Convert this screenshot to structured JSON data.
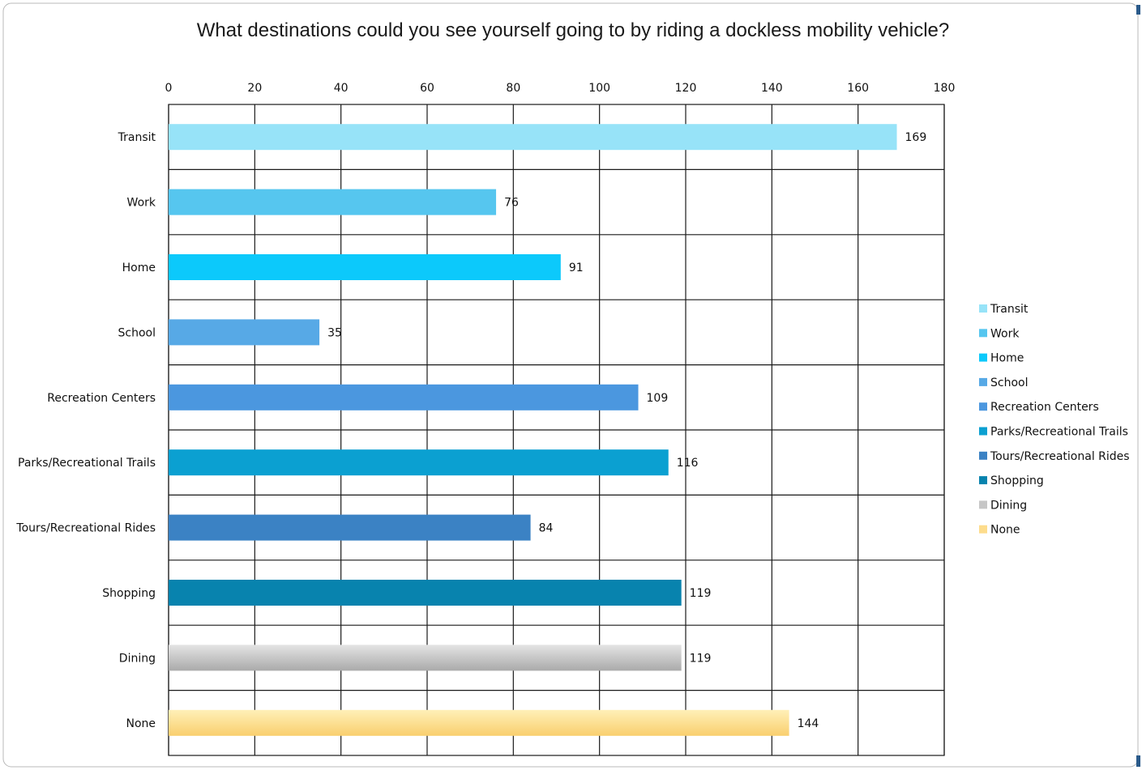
{
  "chart_data": {
    "type": "bar",
    "orientation": "horizontal",
    "title": "What destinations could you see yourself going to by riding a dockless mobility vehicle?",
    "xlabel": "",
    "ylabel": "",
    "xlim": [
      0,
      180
    ],
    "x_ticks": [
      0,
      20,
      40,
      60,
      80,
      100,
      120,
      140,
      160,
      180
    ],
    "x_axis_position": "top",
    "grid": true,
    "legend_position": "right",
    "categories": [
      "Transit",
      "Work",
      "Home",
      "School",
      "Recreation Centers",
      "Parks/Recreational Trails",
      "Tours/Recreational Rides",
      "Shopping",
      "Dining",
      "None"
    ],
    "values": [
      169,
      76,
      91,
      35,
      109,
      116,
      84,
      119,
      119,
      144
    ],
    "data_labels": [
      "169",
      "76",
      "91",
      "35",
      "109",
      "116",
      "84",
      "119",
      "119",
      "144"
    ],
    "colors": [
      "#97e3f8",
      "#56c6ef",
      "#0cc9fb",
      "#57a9e6",
      "#4b97df",
      "#0ba0d1",
      "#3b82c4",
      "#0883ae",
      "#c6c6c6",
      "#fddc8c"
    ],
    "legend": [
      "Transit",
      "Work",
      "Home",
      "School",
      "Recreation Centers",
      "Parks/Recreational Trails",
      "Tours/Recreational Rides",
      "Shopping",
      "Dining",
      "None"
    ]
  }
}
